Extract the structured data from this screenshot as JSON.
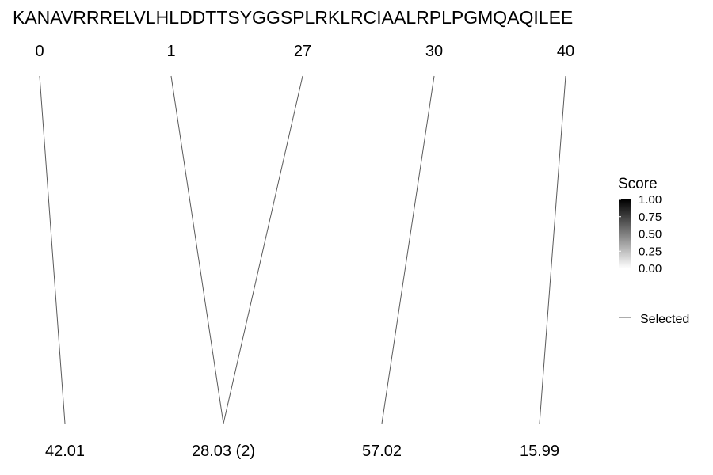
{
  "chart_data": {
    "type": "alignment-links",
    "sequence": "KANAVRRRELVLHLDDTTSYGGSPLRKLRCIAALRPLPGMQAQILEE",
    "top_positions": [
      "0",
      "1",
      "27",
      "30",
      "40"
    ],
    "bottom_labels": [
      "42.01",
      "28.03 (2)",
      "57.02",
      "15.99"
    ],
    "links": [
      {
        "from": "0",
        "to": "42.01",
        "selected": true
      },
      {
        "from": "1",
        "to": "28.03 (2)",
        "selected": true
      },
      {
        "from": "27",
        "to": "28.03 (2)",
        "selected": true
      },
      {
        "from": "30",
        "to": "57.02",
        "selected": true
      },
      {
        "from": "40",
        "to": "15.99",
        "selected": true
      }
    ],
    "legend": {
      "score_title": "Score",
      "score_ticks": [
        "1.00",
        "0.75",
        "0.50",
        "0.25",
        "0.00"
      ],
      "score_range": [
        0,
        1
      ],
      "line_label": "Selected",
      "placement": "right"
    }
  }
}
